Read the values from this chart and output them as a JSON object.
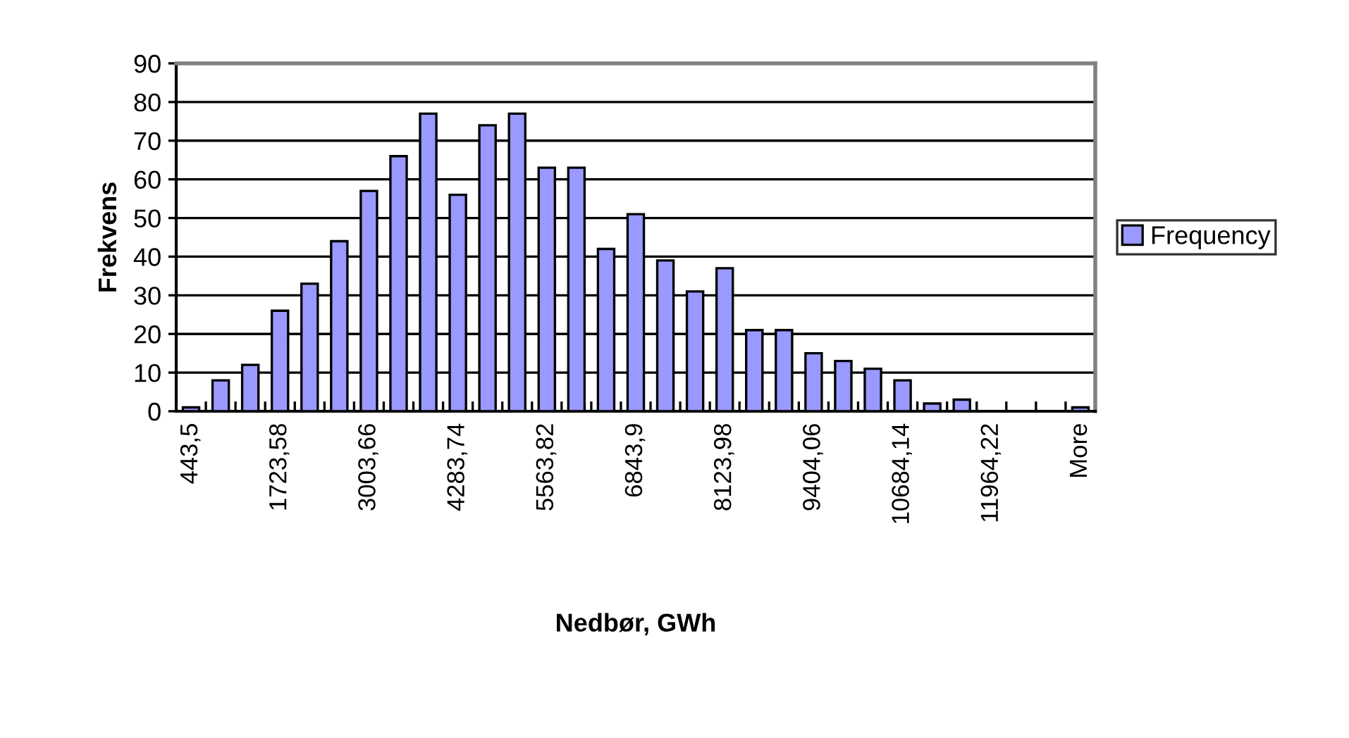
{
  "chart_data": {
    "type": "bar",
    "categories": [
      "443,5",
      null,
      null,
      "1723,58",
      null,
      null,
      "3003,66",
      null,
      null,
      "4283,74",
      null,
      null,
      "5563,82",
      null,
      null,
      "6843,9",
      null,
      null,
      "8123,98",
      null,
      null,
      "9404,06",
      null,
      null,
      "10684,14",
      null,
      null,
      "11964,22",
      null,
      null,
      "More"
    ],
    "series": [
      {
        "name": "Frequency",
        "color": "#9999ff",
        "values": [
          1,
          8,
          12,
          26,
          33,
          44,
          57,
          66,
          77,
          56,
          74,
          77,
          63,
          63,
          42,
          51,
          39,
          31,
          37,
          21,
          21,
          15,
          13,
          11,
          8,
          2,
          3,
          0,
          0,
          0,
          1
        ]
      }
    ],
    "xlabel": "Nedbør, GWh",
    "ylabel": "Frekvens",
    "ylim": [
      0,
      90
    ],
    "yticks": [
      0,
      10,
      20,
      30,
      40,
      50,
      60,
      70,
      80,
      90
    ],
    "grid": "y",
    "legend": "right"
  }
}
